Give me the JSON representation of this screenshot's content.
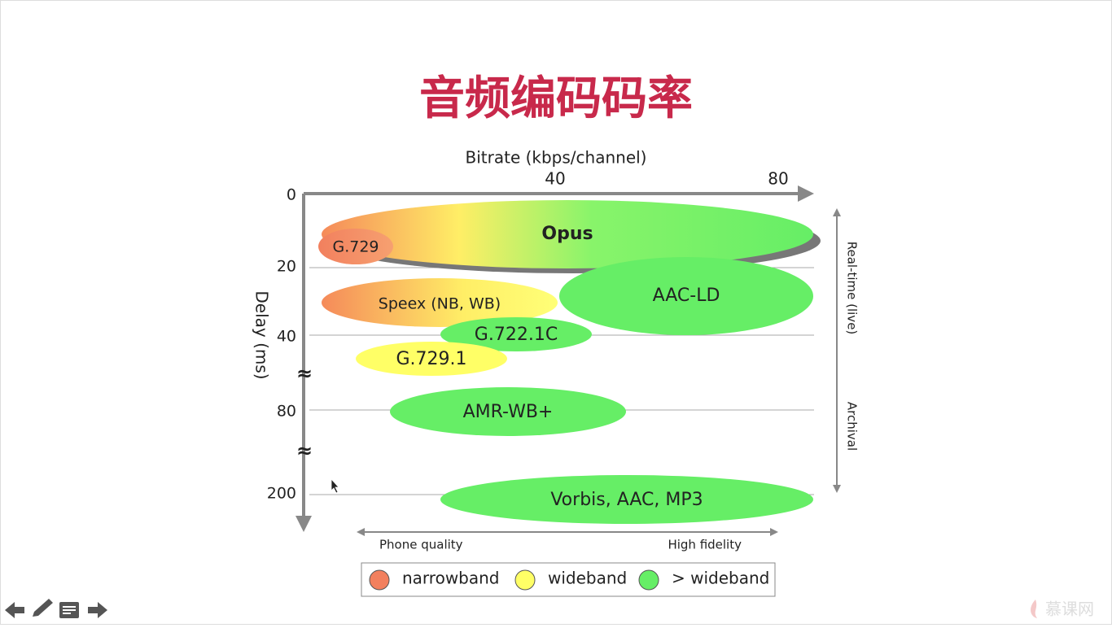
{
  "slide": {
    "title": "音频编码码率",
    "diagram": {
      "x_axis": {
        "label": "Bitrate (kbps/channel)",
        "ticks": [
          "40",
          "80"
        ]
      },
      "y_axis": {
        "label": "Delay (ms)",
        "ticks": [
          "0",
          "20",
          "40",
          "80",
          "200"
        ],
        "breaks": [
          "≈",
          "≈"
        ]
      },
      "codecs": [
        {
          "label": "Opus"
        },
        {
          "label": "G.729"
        },
        {
          "label": "Speex (NB, WB)"
        },
        {
          "label": "AAC-LD"
        },
        {
          "label": "G.722.1C"
        },
        {
          "label": "G.729.1"
        },
        {
          "label": "AMR-WB+"
        },
        {
          "label": "Vorbis, AAC, MP3"
        }
      ],
      "side_labels": [
        "Real-time (live)",
        "Archival"
      ],
      "quality_labels": [
        "Phone quality",
        "High fidelity"
      ],
      "legend": [
        "narrowband",
        "wideband",
        "> wideband"
      ]
    },
    "footer": {
      "brand": "慕课网"
    }
  }
}
